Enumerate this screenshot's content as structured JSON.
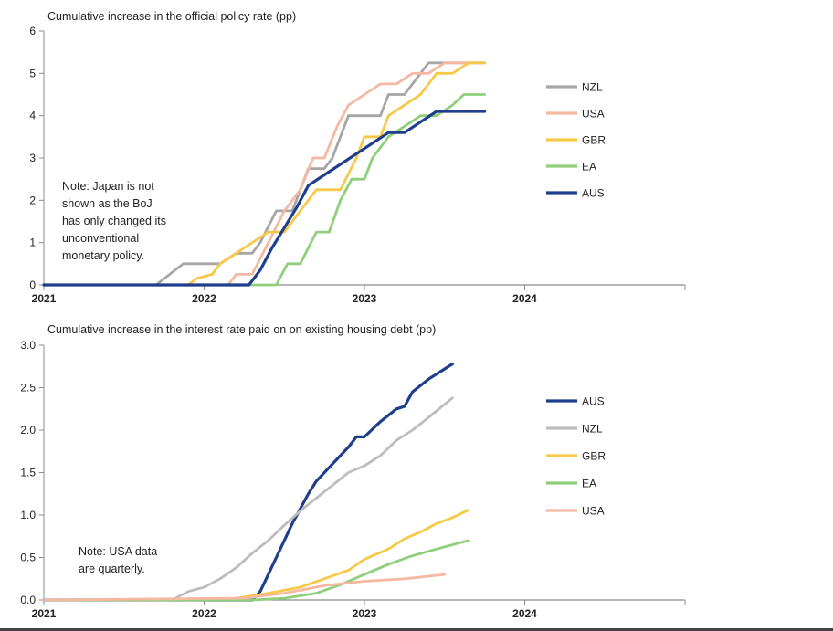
{
  "chart_data": [
    {
      "type": "line",
      "title": "Cumulative increase in the official policy rate (pp)",
      "ylim": [
        0,
        6
      ],
      "yticks": [
        "0",
        "1",
        "2",
        "3",
        "4",
        "5",
        "6"
      ],
      "xlim": [
        2021,
        2025
      ],
      "xticks": [
        "2021",
        "2022",
        "2023",
        "2024"
      ],
      "legend_position": "right",
      "note": [
        "Note: Japan is not",
        "shown as the BoJ",
        "has only changed its",
        "unconventional",
        "monetary policy."
      ],
      "series": [
        {
          "name": "NZL",
          "color": "#a6a6a6",
          "x": [
            2021.0,
            2021.7,
            2021.87,
            2022.0,
            2022.1,
            2022.2,
            2022.3,
            2022.35,
            2022.45,
            2022.55,
            2022.6,
            2022.65,
            2022.75,
            2022.8,
            2022.85,
            2022.9,
            2023.0,
            2023.1,
            2023.15,
            2023.25,
            2023.3,
            2023.4,
            2023.5,
            2023.75
          ],
          "y": [
            0,
            0,
            0.5,
            0.5,
            0.5,
            0.75,
            0.75,
            1.0,
            1.75,
            1.75,
            2.25,
            2.75,
            2.75,
            3.0,
            3.5,
            4.0,
            4.0,
            4.0,
            4.5,
            4.5,
            4.75,
            5.25,
            5.25,
            5.25
          ]
        },
        {
          "name": "USA",
          "color": "#f4b9a0",
          "x": [
            2021.0,
            2022.15,
            2022.2,
            2022.3,
            2022.4,
            2022.5,
            2022.6,
            2022.68,
            2022.75,
            2022.83,
            2022.9,
            2023.0,
            2023.1,
            2023.2,
            2023.3,
            2023.4,
            2023.5,
            2023.75
          ],
          "y": [
            0,
            0,
            0.25,
            0.25,
            1.0,
            1.75,
            2.25,
            3.0,
            3.0,
            3.75,
            4.25,
            4.5,
            4.75,
            4.75,
            5.0,
            5.0,
            5.25,
            5.25
          ]
        },
        {
          "name": "GBR",
          "color": "#f7c948",
          "x": [
            2021.0,
            2021.9,
            2021.95,
            2022.05,
            2022.1,
            2022.2,
            2022.3,
            2022.4,
            2022.5,
            2022.6,
            2022.7,
            2022.8,
            2022.85,
            2022.95,
            2023.0,
            2023.1,
            2023.15,
            2023.25,
            2023.35,
            2023.45,
            2023.55,
            2023.65,
            2023.75
          ],
          "y": [
            0,
            0,
            0.15,
            0.25,
            0.5,
            0.75,
            1.0,
            1.25,
            1.25,
            1.75,
            2.25,
            2.25,
            2.25,
            3.0,
            3.5,
            3.5,
            4.0,
            4.25,
            4.5,
            5.0,
            5.0,
            5.25,
            5.25
          ]
        },
        {
          "name": "EA",
          "color": "#8fcf7c",
          "x": [
            2021.0,
            2022.45,
            2022.52,
            2022.6,
            2022.7,
            2022.78,
            2022.85,
            2022.92,
            2023.0,
            2023.05,
            2023.15,
            2023.25,
            2023.35,
            2023.45,
            2023.55,
            2023.62,
            2023.75
          ],
          "y": [
            0,
            0,
            0.5,
            0.5,
            1.25,
            1.25,
            2.0,
            2.5,
            2.5,
            3.0,
            3.5,
            3.75,
            4.0,
            4.0,
            4.25,
            4.5,
            4.5
          ]
        },
        {
          "name": "AUS",
          "color": "#1f3f8c",
          "x": [
            2021.0,
            2022.28,
            2022.35,
            2022.42,
            2022.5,
            2022.58,
            2022.65,
            2022.75,
            2022.85,
            2022.95,
            2023.05,
            2023.15,
            2023.25,
            2023.35,
            2023.45,
            2023.75
          ],
          "y": [
            0,
            0,
            0.35,
            0.85,
            1.35,
            1.85,
            2.35,
            2.6,
            2.85,
            3.1,
            3.35,
            3.6,
            3.6,
            3.85,
            4.1,
            4.1
          ]
        }
      ]
    },
    {
      "type": "line",
      "title": "Cumulative increase in the interest rate paid on on existing housing debt (pp)",
      "ylim": [
        0,
        3
      ],
      "yticks": [
        "0.0",
        "0.5",
        "1.0",
        "1.5",
        "2.0",
        "2.5",
        "3.0"
      ],
      "xlim": [
        2021,
        2025
      ],
      "xticks": [
        "2021",
        "2022",
        "2023",
        "2024"
      ],
      "legend_position": "right",
      "note": [
        "Note: USA data",
        "are quarterly."
      ],
      "series": [
        {
          "name": "AUS",
          "color": "#1f3f8c",
          "x": [
            2021.0,
            2022.3,
            2022.35,
            2022.45,
            2022.55,
            2022.65,
            2022.7,
            2022.8,
            2022.9,
            2022.95,
            2023.0,
            2023.1,
            2023.2,
            2023.25,
            2023.3,
            2023.4,
            2023.5,
            2023.55
          ],
          "y": [
            0,
            0,
            0.1,
            0.5,
            0.9,
            1.25,
            1.4,
            1.6,
            1.8,
            1.92,
            1.92,
            2.1,
            2.25,
            2.28,
            2.45,
            2.6,
            2.72,
            2.78
          ]
        },
        {
          "name": "NZL",
          "color": "#bdbdbd",
          "x": [
            2021.0,
            2021.8,
            2021.9,
            2022.0,
            2022.1,
            2022.2,
            2022.3,
            2022.4,
            2022.5,
            2022.6,
            2022.7,
            2022.8,
            2022.9,
            2023.0,
            2023.1,
            2023.2,
            2023.3,
            2023.4,
            2023.55
          ],
          "y": [
            0,
            0,
            0.1,
            0.15,
            0.25,
            0.38,
            0.55,
            0.7,
            0.88,
            1.05,
            1.2,
            1.35,
            1.5,
            1.58,
            1.7,
            1.88,
            2.0,
            2.15,
            2.38
          ]
        },
        {
          "name": "GBR",
          "color": "#f7c948",
          "x": [
            2021.0,
            2022.0,
            2022.2,
            2022.4,
            2022.6,
            2022.75,
            2022.9,
            2023.0,
            2023.15,
            2023.25,
            2023.35,
            2023.45,
            2023.55,
            2023.65
          ],
          "y": [
            0,
            0,
            0.02,
            0.08,
            0.15,
            0.25,
            0.35,
            0.48,
            0.6,
            0.72,
            0.8,
            0.9,
            0.97,
            1.06
          ]
        },
        {
          "name": "EA",
          "color": "#8fcf7c",
          "x": [
            2021.0,
            2022.3,
            2022.5,
            2022.7,
            2022.85,
            2023.0,
            2023.15,
            2023.3,
            2023.45,
            2023.65
          ],
          "y": [
            0,
            0,
            0.02,
            0.08,
            0.18,
            0.3,
            0.42,
            0.52,
            0.6,
            0.7
          ]
        },
        {
          "name": "USA",
          "color": "#f4b9a0",
          "x": [
            2021.0,
            2022.25,
            2022.5,
            2022.75,
            2023.0,
            2023.25,
            2023.5
          ],
          "y": [
            0,
            0.02,
            0.08,
            0.17,
            0.22,
            0.25,
            0.3
          ]
        }
      ]
    }
  ]
}
